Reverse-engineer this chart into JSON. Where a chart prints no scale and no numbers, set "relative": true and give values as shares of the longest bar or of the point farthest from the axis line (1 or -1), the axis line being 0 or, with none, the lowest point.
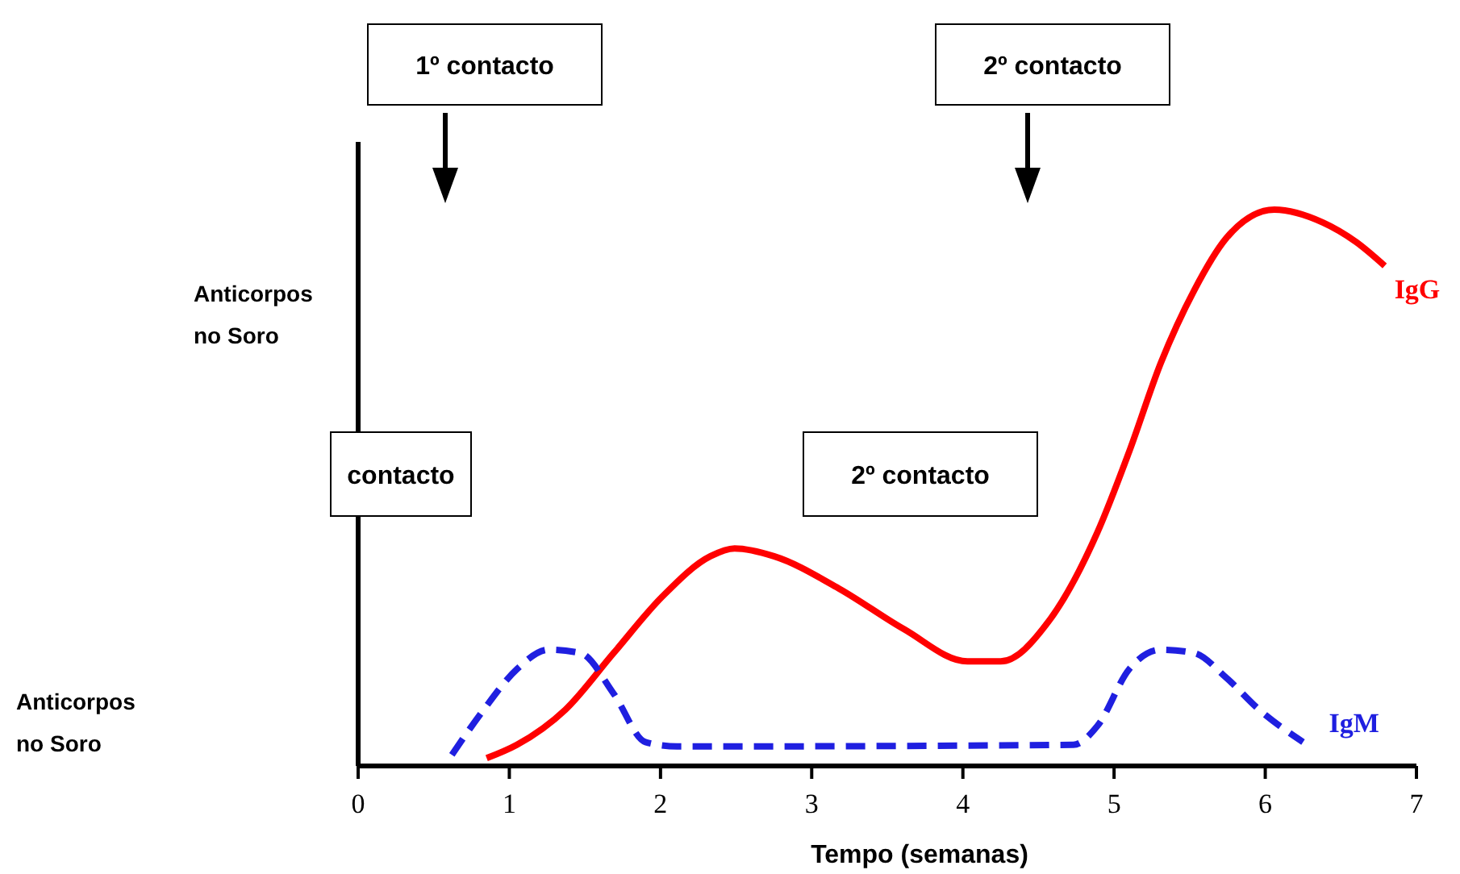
{
  "chart_data": {
    "type": "line",
    "relative": true,
    "xlabel": "Tempo (semanas)",
    "ylabel": "Anticorpos no Soro",
    "xlim": [
      0,
      7
    ],
    "xticks": [
      0,
      1,
      2,
      3,
      4,
      5,
      6,
      7
    ],
    "annotations": [
      "1º contacto",
      "2º contacto",
      "contacto",
      "2º contacto",
      "Anticorpos no Soro"
    ],
    "legend": false,
    "marker": "none",
    "series": [
      {
        "name": "IgG",
        "color": "#ff0000",
        "line_style": "solid",
        "x": [
          0.85,
          1.05,
          1.37,
          1.69,
          2.01,
          2.33,
          2.49,
          2.75,
          3.18,
          3.61,
          4.03,
          4.25,
          4.57,
          4.89,
          5.1,
          5.31,
          5.53,
          5.74,
          6.06,
          6.38,
          6.6,
          6.79
        ],
        "values": [
          0.014,
          0.038,
          0.101,
          0.203,
          0.304,
          0.377,
          0.391,
          0.377,
          0.319,
          0.246,
          0.188,
          0.188,
          0.261,
          0.42,
          0.565,
          0.725,
          0.855,
          0.948,
          1.0,
          0.977,
          0.942,
          0.899
        ]
      },
      {
        "name": "IgM",
        "color": "#1f1fe0",
        "line_style": "dashed",
        "x": [
          0.62,
          0.83,
          1.05,
          1.26,
          1.47,
          1.69,
          1.9,
          2.11,
          4.73,
          4.89,
          5.1,
          5.31,
          5.53,
          5.74,
          5.96,
          6.25
        ],
        "values": [
          0.02,
          0.101,
          0.174,
          0.209,
          0.203,
          0.13,
          0.043,
          0.035,
          0.038,
          0.072,
          0.174,
          0.209,
          0.203,
          0.159,
          0.101,
          0.043
        ]
      }
    ]
  }
}
